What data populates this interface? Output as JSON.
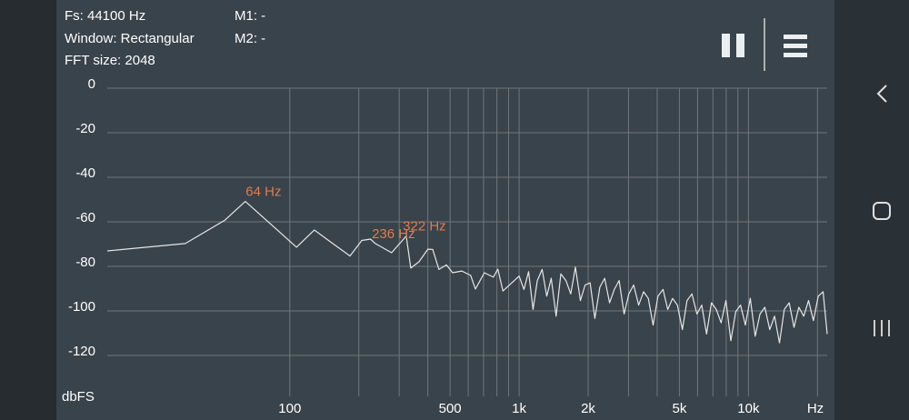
{
  "header": {
    "fs": "Fs: 44100 Hz",
    "window": "Window: Rectangular",
    "fft_size": "FFT size: 2048",
    "m1": "M1: -",
    "m2": "M2: -"
  },
  "chart_data": {
    "type": "line",
    "xlabel": "Hz",
    "ylabel": "dbFS",
    "xscale": "log",
    "grid": true,
    "color": "#e6e6e6",
    "xlim": [
      16,
      22050
    ],
    "ylim": [
      -140,
      0
    ],
    "xticks": [
      100,
      500,
      {
        "value": 1000,
        "label": "1k"
      },
      {
        "value": 2000,
        "label": "2k"
      },
      {
        "value": 5000,
        "label": "5k"
      },
      {
        "value": 10000,
        "label": "10k"
      }
    ],
    "xgrid": [
      100,
      200,
      300,
      400,
      500,
      600,
      700,
      800,
      900,
      1000,
      2000,
      3000,
      4000,
      5000,
      6000,
      7000,
      8000,
      9000,
      10000,
      20000
    ],
    "yticks": [
      0,
      -20,
      -40,
      -60,
      -80,
      -100,
      -120
    ],
    "x": [
      16,
      35,
      52,
      64,
      107,
      128,
      152,
      183,
      206,
      225,
      236,
      278,
      322,
      337,
      366,
      400,
      420,
      447,
      482,
      513,
      563,
      615,
      645,
      706,
      772,
      808,
      850,
      1000,
      1050,
      1100,
      1150,
      1200,
      1260,
      1320,
      1380,
      1450,
      1520,
      1600,
      1680,
      1760,
      1850,
      1940,
      2040,
      2140,
      2250,
      2360,
      2480,
      2600,
      2730,
      2870,
      3010,
      3160,
      3320,
      3490,
      3660,
      3840,
      4030,
      4240,
      4450,
      4670,
      4900,
      5150,
      5400,
      5670,
      5960,
      6260,
      6570,
      6900,
      7240,
      7600,
      7980,
      8380,
      8800,
      9240,
      9700,
      10190,
      10700,
      11230,
      11790,
      12380,
      13000,
      13650,
      14330,
      15050,
      15800,
      16590,
      17420,
      18290,
      19200,
      20160,
      21170,
      22050
    ],
    "values": [
      -74.7,
      -71.4,
      -61,
      -52.5,
      -73,
      -65.3,
      -71,
      -77,
      -70,
      -69.4,
      -71.4,
      -75.5,
      -68,
      -82.4,
      -79.6,
      -73.9,
      -74,
      -83,
      -81,
      -84.5,
      -83.7,
      -85.7,
      -91.8,
      -84.5,
      -86.5,
      -82.9,
      -92.7,
      -86,
      -92,
      -84,
      -101,
      -88,
      -83,
      -95,
      -87,
      -104,
      -85,
      -88,
      -94,
      -82,
      -97,
      -90,
      -89,
      -105,
      -91,
      -87,
      -98,
      -92,
      -88,
      -103,
      -94,
      -90,
      -99,
      -93,
      -96,
      -108,
      -95,
      -92,
      -101,
      -96,
      -99,
      -110,
      -97,
      -94,
      -103,
      -99,
      -112,
      -98,
      -101,
      -107,
      -97,
      -115,
      -102,
      -99,
      -108,
      -96,
      -113,
      -103,
      -100,
      -110,
      -104,
      -116,
      -101,
      -98,
      -109,
      -100,
      -104,
      -97,
      -106,
      -95,
      -93,
      -112
    ],
    "annotations": [
      {
        "label": "64 Hz",
        "x": 64,
        "y": -52.5
      },
      {
        "label": "236 Hz",
        "x": 236,
        "y": -71.4
      },
      {
        "label": "322 Hz",
        "x": 322,
        "y": -68
      }
    ],
    "annotation_color": "#e27b4d"
  }
}
